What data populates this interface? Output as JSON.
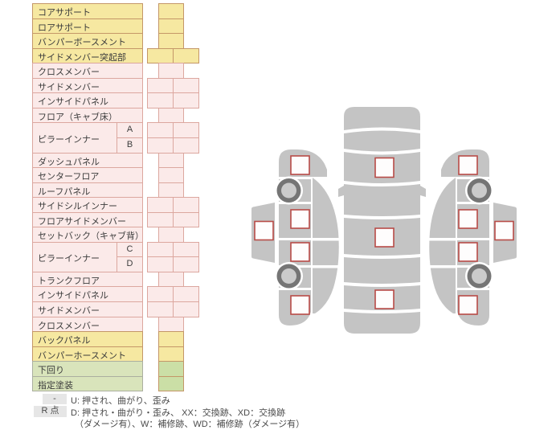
{
  "colors": {
    "row_yellow": "#F6E8A1",
    "row_yellow_border": "#C49768",
    "row_pink": "#FBEAE9",
    "row_pink_border": "#DCA79F",
    "row_green_label": "#D9E4BB",
    "row_green_label_border": "#ABAFA0",
    "cell_green": "#CBDFA6",
    "car_body": "#C4C4C4",
    "wheel_ring": "#757575",
    "wheel_hub": "#CBCBCB",
    "marker_fill": "#FEFDFD",
    "marker_border": "#B84B47",
    "legend_key_bg": "#E6E6E6",
    "text": "#3C3C3C"
  },
  "table": {
    "rows": [
      {
        "label": "コアサポート",
        "color": "yellow",
        "cells": "single"
      },
      {
        "label": "ロアサポート",
        "color": "yellow",
        "cells": "single"
      },
      {
        "label": "バンパーボースメント",
        "color": "yellow",
        "cells": "single"
      },
      {
        "label": "サイドメンバー突起部",
        "color": "yellow",
        "cells": "double"
      },
      {
        "label": "クロスメンバー",
        "color": "pink",
        "cells": "single"
      },
      {
        "label": "サイドメンバー",
        "color": "pink",
        "cells": "double"
      },
      {
        "label": "インサイドパネル",
        "color": "pink",
        "cells": "double"
      },
      {
        "label": "フロア（キャブ床）",
        "color": "pink",
        "cells": "single"
      },
      {
        "label": "ピラーインナー",
        "sub": "A",
        "group": "start",
        "color": "pink",
        "cells": "double"
      },
      {
        "label": "",
        "sub": "B",
        "group": "end",
        "color": "pink",
        "cells": "double"
      },
      {
        "label": "ダッシュパネル",
        "color": "pink",
        "cells": "single"
      },
      {
        "label": "センターフロア",
        "color": "pink",
        "cells": "single"
      },
      {
        "label": "ルーフパネル",
        "color": "pink",
        "cells": "single"
      },
      {
        "label": "サイドシルインナー",
        "color": "pink",
        "cells": "double"
      },
      {
        "label": "フロアサイドメンバー",
        "color": "pink",
        "cells": "double"
      },
      {
        "label": "セットバック（キャブ背）",
        "color": "pink",
        "cells": "single"
      },
      {
        "label": "ピラーインナー",
        "sub": "C",
        "group": "start",
        "color": "pink",
        "cells": "double"
      },
      {
        "label": "",
        "sub": "D",
        "group": "end",
        "color": "pink",
        "cells": "double"
      },
      {
        "label": "トランクフロア",
        "color": "pink",
        "cells": "single"
      },
      {
        "label": "インサイドパネル",
        "color": "pink",
        "cells": "double"
      },
      {
        "label": "サイドメンバー",
        "color": "pink",
        "cells": "double"
      },
      {
        "label": "クロスメンバー",
        "color": "pink",
        "cells": "single"
      },
      {
        "label": "バックパネル",
        "color": "yellow",
        "cells": "single"
      },
      {
        "label": "バンパーホースメント",
        "color": "yellow",
        "cells": "single"
      },
      {
        "label": "下回り",
        "color": "green",
        "cells": "single"
      },
      {
        "label": "指定塗装",
        "color": "green",
        "cells": "single"
      }
    ],
    "cell_values": "empty"
  },
  "legend": {
    "key1": "-",
    "line1": "U: 押され、曲がり、歪み",
    "key2": "R 点",
    "line2": "D: 押され・曲がり・歪み、 XX：交換跡、XD：交換跡",
    "line3": "（ダメージ有）、W：補修跡、WD：補修跡（ダメージ有）"
  },
  "diagram": {
    "type": "vehicle-damage-map",
    "views": [
      {
        "name": "left-side-view",
        "markers": [
          "front-fender",
          "front-door",
          "rear-door",
          "rear-fender",
          "outer-panel"
        ],
        "wheels": 2
      },
      {
        "name": "top-view",
        "markers": [
          "hood",
          "roof",
          "trunk"
        ],
        "wheels": 0
      },
      {
        "name": "right-side-view",
        "markers": [
          "front-fender",
          "front-door",
          "rear-door",
          "rear-fender",
          "outer-panel"
        ],
        "wheels": 2
      }
    ]
  }
}
